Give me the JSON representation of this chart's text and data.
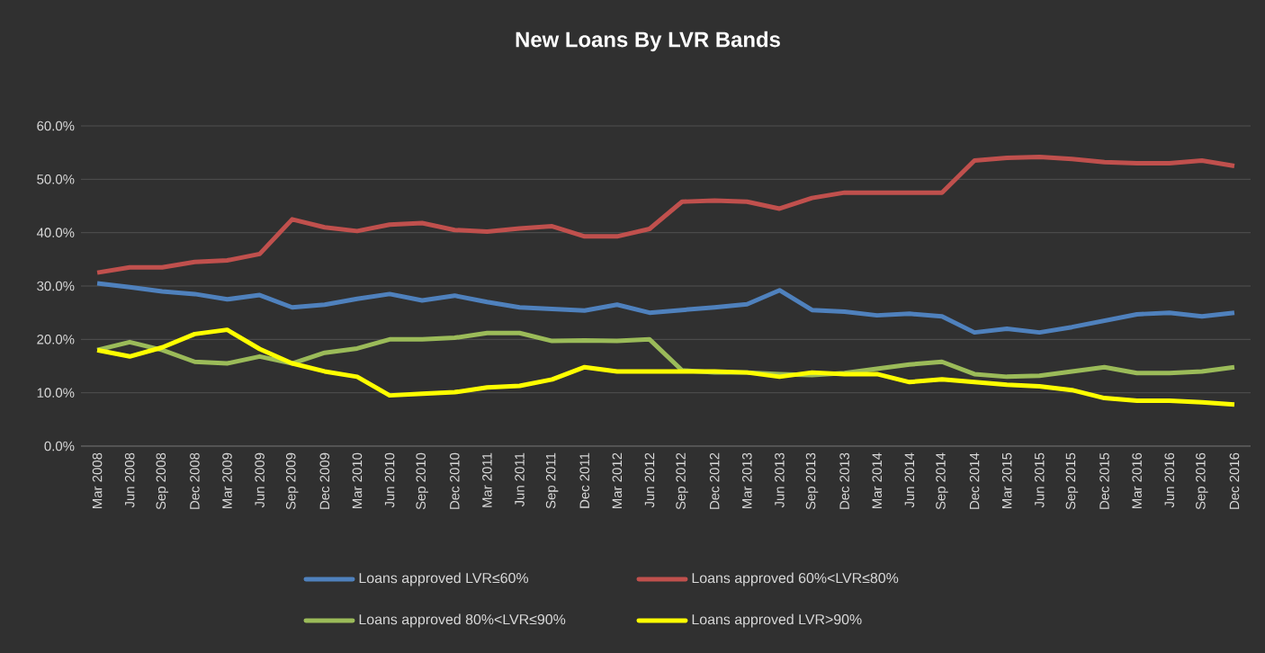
{
  "chart_data": {
    "type": "line",
    "title": "New Loans  By LVR Bands",
    "categories": [
      "Mar 2008",
      "Jun 2008",
      "Sep 2008",
      "Dec 2008",
      "Mar 2009",
      "Jun 2009",
      "Sep 2009",
      "Dec 2009",
      "Mar 2010",
      "Jun 2010",
      "Sep 2010",
      "Dec 2010",
      "Mar 2011",
      "Jun 2011",
      "Sep 2011",
      "Dec 2011",
      "Mar 2012",
      "Jun 2012",
      "Sep 2012",
      "Dec 2012",
      "Mar 2013",
      "Jun 2013",
      "Sep 2013",
      "Dec 2013",
      "Mar 2014",
      "Jun 2014",
      "Sep 2014",
      "Dec 2014",
      "Mar 2015",
      "Jun 2015",
      "Sep 2015",
      "Dec 2015",
      "Mar 2016",
      "Jun 2016",
      "Sep 2016",
      "Dec 2016"
    ],
    "series": [
      {
        "name": "Loans approved LVR≤60%",
        "color": "#4f81bd",
        "values": [
          30.5,
          29.8,
          29,
          28.5,
          27.5,
          28.3,
          26,
          26.5,
          27.6,
          28.5,
          27.3,
          28.2,
          27,
          26,
          25.7,
          25.4,
          26.5,
          25,
          25.5,
          26,
          26.6,
          29.2,
          25.5,
          25.2,
          24.5,
          24.8,
          24.3,
          21.3,
          22,
          21.3,
          22.3,
          23.5,
          24.7,
          25,
          24.3,
          25
        ]
      },
      {
        "name": "Loans approved 60%<LVR≤80%",
        "color": "#c0504d",
        "values": [
          32.5,
          33.5,
          33.5,
          34.5,
          34.8,
          36,
          42.5,
          41,
          40.3,
          41.5,
          41.8,
          40.5,
          40.2,
          40.8,
          41.2,
          39.3,
          39.3,
          40.7,
          45.8,
          46,
          45.8,
          44.5,
          46.5,
          47.5,
          47.5,
          47.5,
          47.5,
          53.5,
          54,
          54.2,
          53.8,
          53.2,
          53,
          53,
          53.5,
          52.5
        ]
      },
      {
        "name": "Loans approved 80%<LVR≤90%",
        "color": "#9bbb59",
        "values": [
          18,
          19.5,
          18,
          15.8,
          15.5,
          16.8,
          15.5,
          17.5,
          18.3,
          20,
          20,
          20.3,
          21.2,
          21.2,
          19.7,
          19.8,
          19.7,
          20,
          14.2,
          13.8,
          13.8,
          13.5,
          13.3,
          13.7,
          14.5,
          15.3,
          15.8,
          13.5,
          13,
          13.2,
          14,
          14.8,
          13.7,
          13.7,
          14,
          14.8
        ]
      },
      {
        "name": "Loans approved LVR>90%",
        "color": "#ffff00",
        "values": [
          18,
          16.8,
          18.5,
          21,
          21.8,
          18.2,
          15.5,
          14,
          13,
          9.5,
          9.8,
          10.1,
          11,
          11.3,
          12.5,
          14.8,
          14,
          14,
          14,
          14,
          13.8,
          13,
          13.8,
          13.5,
          13.5,
          12,
          12.5,
          12,
          11.5,
          11.2,
          10.5,
          9,
          8.5,
          8.5,
          8.2,
          7.8
        ]
      }
    ],
    "ylim": [
      0,
      60
    ],
    "yticks": [
      {
        "value": 0,
        "label": "0.0%"
      },
      {
        "value": 10,
        "label": "10.0%"
      },
      {
        "value": 20,
        "label": "20.0%"
      },
      {
        "value": 30,
        "label": "30.0%"
      },
      {
        "value": 40,
        "label": "40.0%"
      },
      {
        "value": 50,
        "label": "50.0%"
      },
      {
        "value": 60,
        "label": "60.0%"
      }
    ],
    "grid": "y",
    "legend": "bottom",
    "marker": "none",
    "line_style": "solid"
  }
}
